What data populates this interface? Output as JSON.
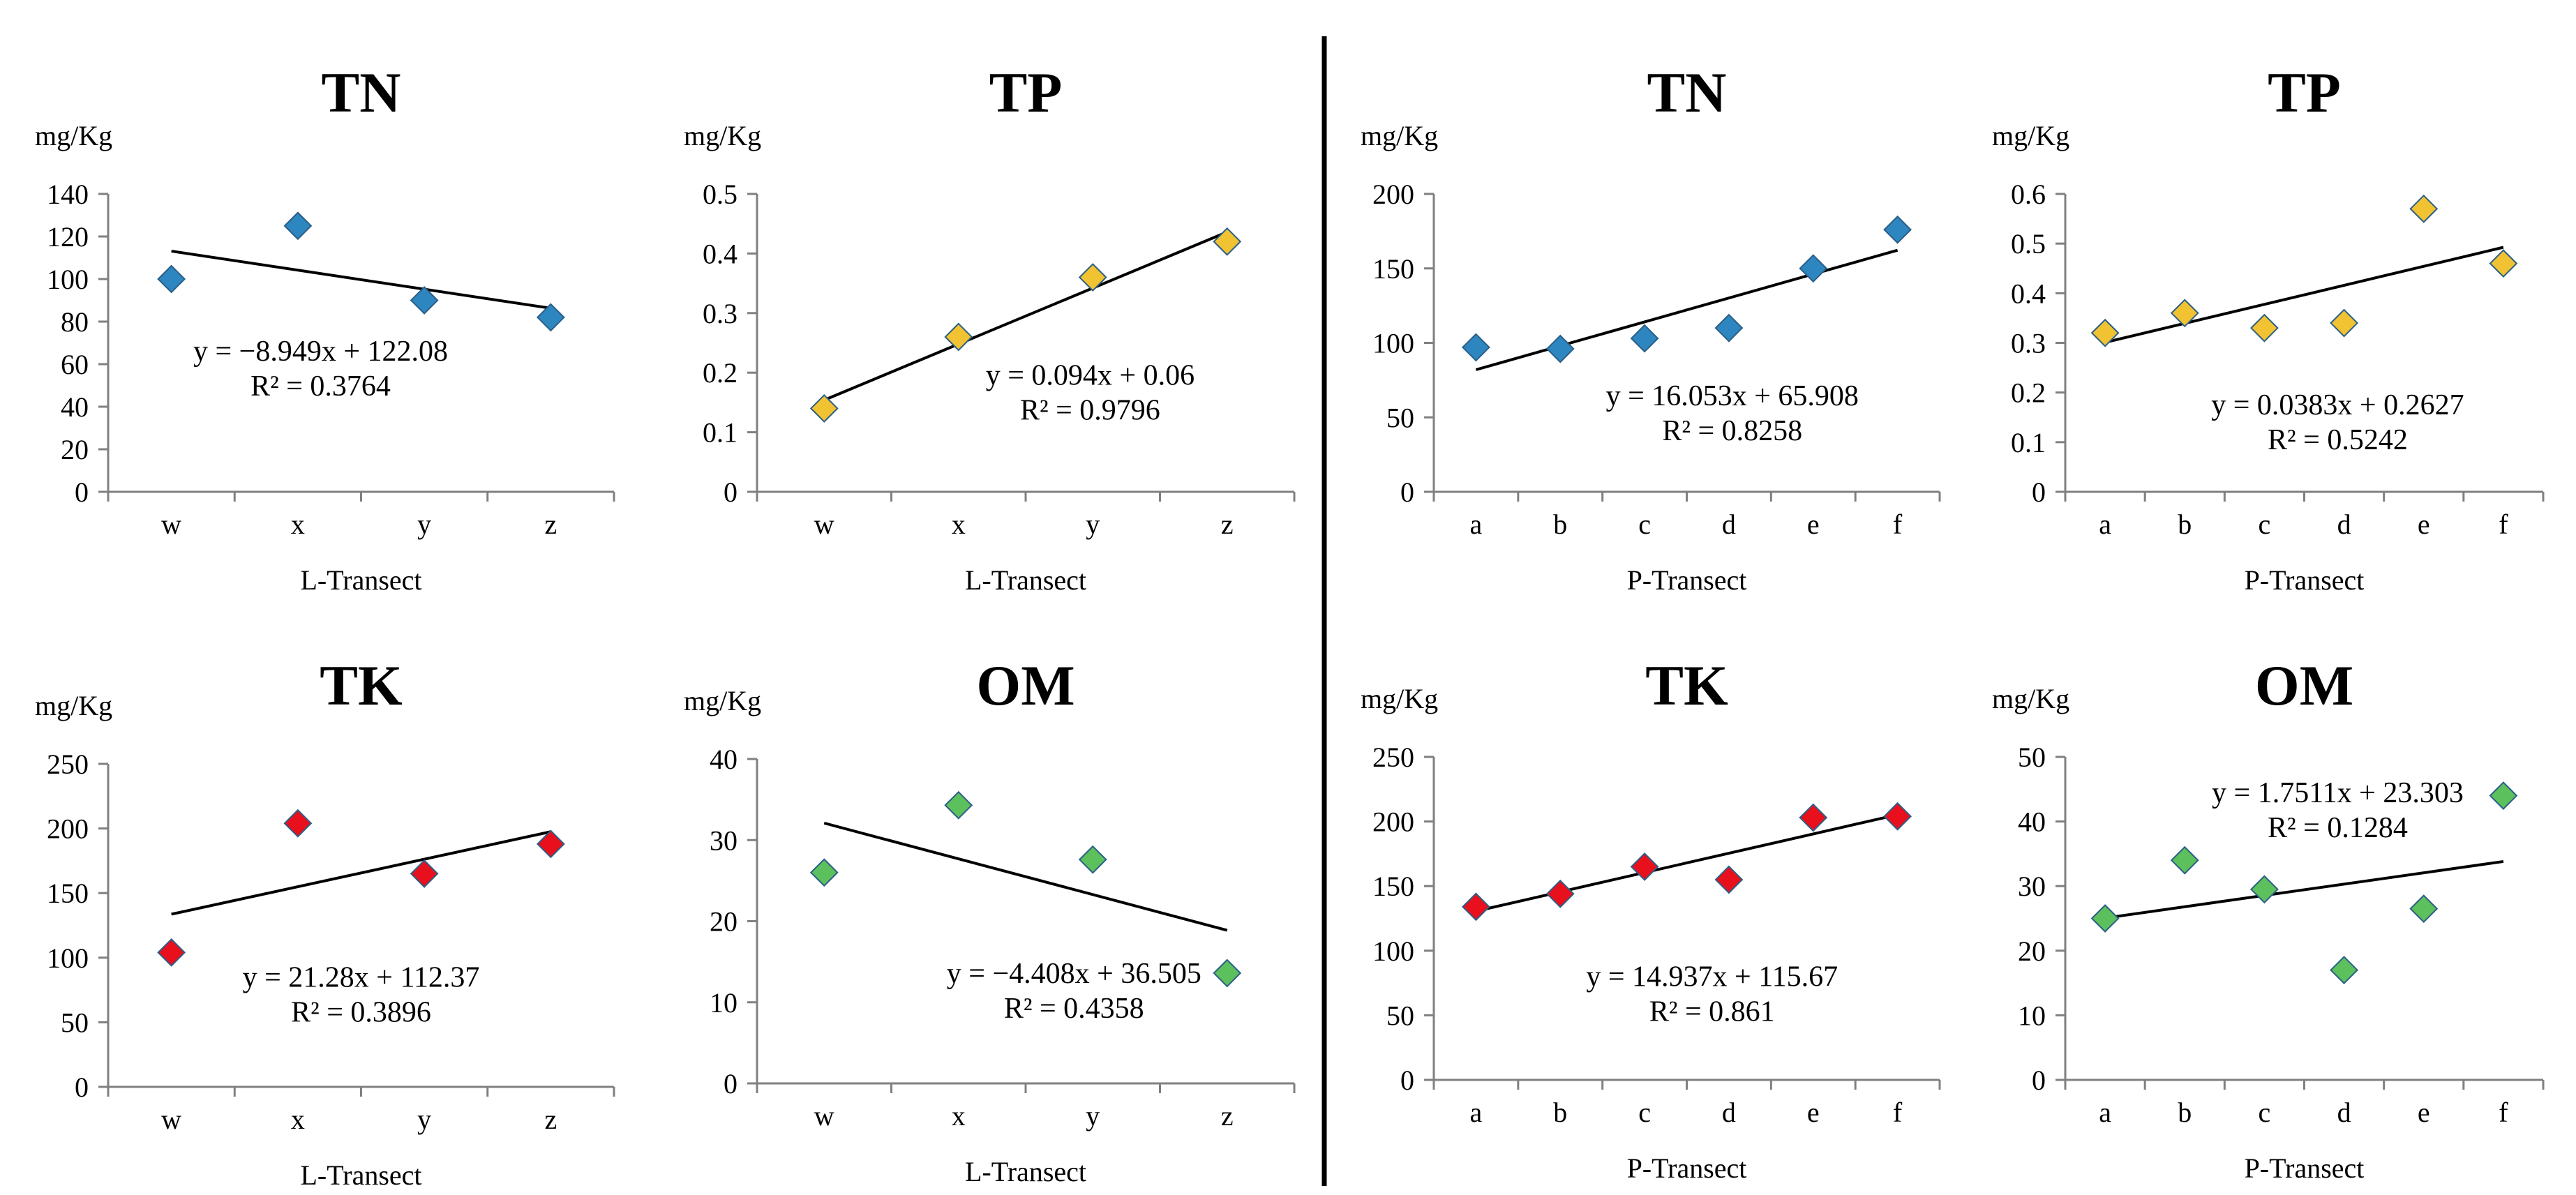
{
  "chart_data": [
    {
      "type": "scatter",
      "title": "TN",
      "unit": "mg/Kg",
      "xlabel": "L-Transect",
      "categories": [
        "w",
        "x",
        "y",
        "z"
      ],
      "values": [
        100,
        125,
        90,
        82
      ],
      "ylim": [
        0,
        140
      ],
      "yticks": [
        0,
        20,
        40,
        60,
        80,
        100,
        120,
        140
      ],
      "marker_color": "#2e86c1",
      "trendline": {
        "slope": -8.949,
        "intercept": 122.08
      },
      "equation": "y = −8.949x + 122.08",
      "r2": "R² = 0.3764"
    },
    {
      "type": "scatter",
      "title": "TP",
      "unit": "mg/Kg",
      "xlabel": "L-Transect",
      "categories": [
        "w",
        "x",
        "y",
        "z"
      ],
      "values": [
        0.14,
        0.26,
        0.36,
        0.42
      ],
      "ylim": [
        0,
        0.5
      ],
      "yticks": [
        0,
        0.1,
        0.2,
        0.3,
        0.4,
        0.5
      ],
      "marker_color": "#f1c232",
      "trendline": {
        "slope": 0.094,
        "intercept": 0.06
      },
      "equation": "y = 0.094x + 0.06",
      "r2": "R² = 0.9796"
    },
    {
      "type": "scatter",
      "title": "TN",
      "unit": "mg/Kg",
      "xlabel": "P-Transect",
      "categories": [
        "a",
        "b",
        "c",
        "d",
        "e",
        "f"
      ],
      "values": [
        97,
        96,
        103,
        110,
        150,
        176
      ],
      "ylim": [
        0,
        200
      ],
      "yticks": [
        0,
        50,
        100,
        150,
        200
      ],
      "marker_color": "#2e86c1",
      "trendline": {
        "slope": 16.053,
        "intercept": 65.908
      },
      "equation": "y = 16.053x + 65.908",
      "r2": "R² = 0.8258"
    },
    {
      "type": "scatter",
      "title": "TP",
      "unit": "mg/Kg",
      "xlabel": "P-Transect",
      "categories": [
        "a",
        "b",
        "c",
        "d",
        "e",
        "f"
      ],
      "values": [
        0.32,
        0.36,
        0.33,
        0.34,
        0.57,
        0.46
      ],
      "ylim": [
        0,
        0.6
      ],
      "yticks": [
        0,
        0.1,
        0.2,
        0.3,
        0.4,
        0.5,
        0.6
      ],
      "marker_color": "#f1c232",
      "trendline": {
        "slope": 0.0383,
        "intercept": 0.2627
      },
      "equation": "y = 0.0383x + 0.2627",
      "r2": "R² = 0.5242"
    },
    {
      "type": "scatter",
      "title": "TK",
      "unit": "mg/Kg",
      "xlabel": "L-Transect",
      "categories": [
        "w",
        "x",
        "y",
        "z"
      ],
      "values": [
        104,
        204,
        165,
        188
      ],
      "ylim": [
        0,
        250
      ],
      "yticks": [
        0,
        50,
        100,
        150,
        200,
        250
      ],
      "marker_color": "#e8101c",
      "trendline": {
        "slope": 21.28,
        "intercept": 112.37
      },
      "equation": "y = 21.28x + 112.37",
      "r2": "R² = 0.3896"
    },
    {
      "type": "scatter",
      "title": "OM",
      "unit": "mg/Kg",
      "xlabel": "L-Transect",
      "categories": [
        "w",
        "x",
        "y",
        "z"
      ],
      "values": [
        26,
        34.3,
        27.6,
        13.6
      ],
      "ylim": [
        0,
        40
      ],
      "yticks": [
        0,
        10,
        20,
        30,
        40
      ],
      "marker_color": "#5cc05c",
      "trendline": {
        "slope": -4.408,
        "intercept": 36.505
      },
      "equation": "y = −4.408x + 36.505",
      "r2": "R² = 0.4358"
    },
    {
      "type": "scatter",
      "title": "TK",
      "unit": "mg/Kg",
      "xlabel": "P-Transect",
      "categories": [
        "a",
        "b",
        "c",
        "d",
        "e",
        "f"
      ],
      "values": [
        134,
        144,
        165,
        155,
        203,
        204
      ],
      "ylim": [
        0,
        250
      ],
      "yticks": [
        0,
        50,
        100,
        150,
        200,
        250
      ],
      "marker_color": "#e8101c",
      "trendline": {
        "slope": 14.937,
        "intercept": 115.67
      },
      "equation": "y = 14.937x + 115.67",
      "r2": "R² = 0.861"
    },
    {
      "type": "scatter",
      "title": "OM",
      "unit": "mg/Kg",
      "xlabel": "P-Transect",
      "categories": [
        "a",
        "b",
        "c",
        "d",
        "e",
        "f"
      ],
      "values": [
        25,
        34,
        29.5,
        17,
        26.5,
        44
      ],
      "ylim": [
        0,
        50
      ],
      "yticks": [
        0,
        10,
        20,
        30,
        40,
        50
      ],
      "marker_color": "#5cc05c",
      "trendline": {
        "slope": 1.7511,
        "intercept": 23.303
      },
      "equation": "y = 1.7511x + 23.303",
      "r2": "R² = 0.1284"
    }
  ]
}
